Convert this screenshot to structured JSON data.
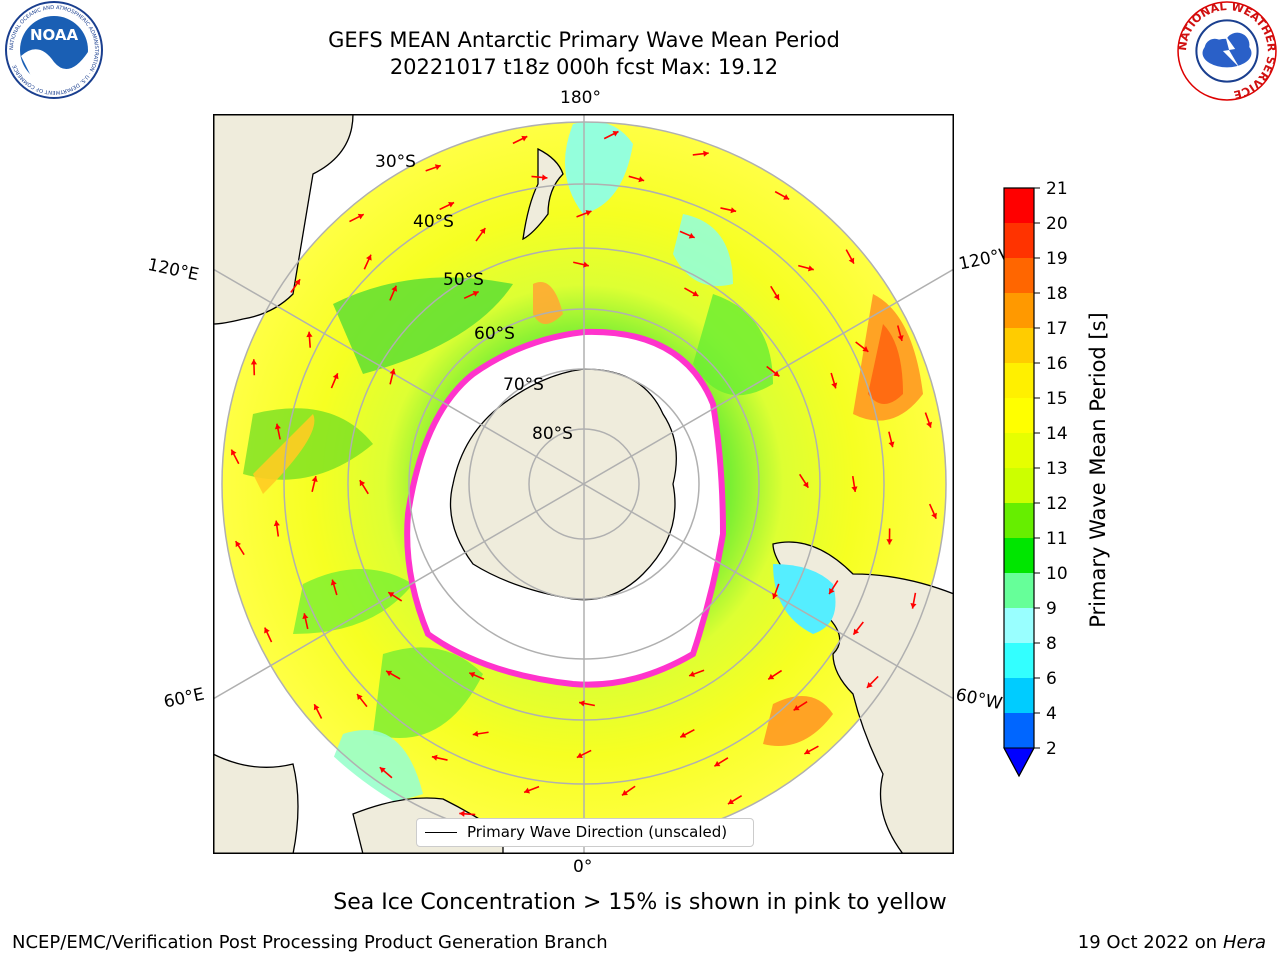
{
  "header": {
    "title_line1": "GEFS MEAN Antarctic Primary Wave Mean Period",
    "title_line2": "20221017 t18z 000h fcst   Max: 19.12"
  },
  "logos": {
    "noaa": {
      "text": "NOAA",
      "ring_text": "NATIONAL OCEANIC AND ATMOSPHERIC ADMINISTRATION · U.S. DEPARTMENT OF COMMERCE"
    },
    "nws": {
      "ring_text": "NATIONAL WEATHER SERVICE"
    }
  },
  "map": {
    "projection": "south-polar-stereographic",
    "longitude_labels": {
      "top": "180°",
      "bottom": "0°",
      "upper_left": "120°E",
      "lower_left": "60°E",
      "upper_right": "120°W",
      "lower_right": "60°W"
    },
    "latitude_labels": [
      "30°S",
      "40°S",
      "50°S",
      "60°S",
      "70°S",
      "80°S"
    ],
    "legend": {
      "label": "Primary Wave Direction (unscaled)"
    },
    "colors": {
      "land": "#efecdc",
      "ice_edge": "#ff33cc",
      "arrow": "#ff0000",
      "grid": "#b0b0b0"
    }
  },
  "colorbar": {
    "title": "Primary Wave Mean Period [s]",
    "ticks": [
      "2",
      "4",
      "6",
      "8",
      "9",
      "10",
      "11",
      "12",
      "13",
      "14",
      "15",
      "16",
      "17",
      "18",
      "19",
      "20",
      "21"
    ],
    "colors": [
      "#0066ff",
      "#00ccff",
      "#33ffff",
      "#99ffff",
      "#66ff99",
      "#00e600",
      "#66ee00",
      "#ccff00",
      "#e6ff00",
      "#ffff00",
      "#fff000",
      "#ffcc00",
      "#ff9900",
      "#ff6600",
      "#ff3300",
      "#ff0000"
    ],
    "extend_color": "#0000ff"
  },
  "footer": {
    "sea_ice_note": "Sea Ice Concentration > 15% is shown in pink to yellow",
    "credit": "NCEP/EMC/Verification Post Processing Product Generation Branch",
    "date": "19 Oct 2022 on",
    "host": "Hera"
  }
}
